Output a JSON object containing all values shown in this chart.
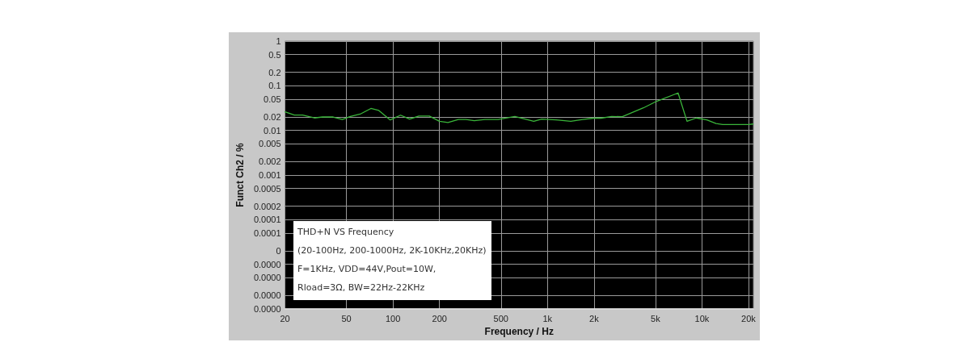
{
  "chart_data": {
    "type": "line",
    "xlabel": "Frequency / Hz",
    "ylabel": "Funct Ch2 / %",
    "annotations": [
      "THD+N VS Frequency",
      "(20-100Hz, 200-1000Hz, 2K-10KHz,20KHz)",
      "F=1KHz, VDD=44V,Pout=10W,",
      "Rload=3Ω, BW=22Hz-22KHz"
    ],
    "x": [
      20,
      23,
      26,
      31,
      35,
      41,
      47,
      53,
      62,
      72,
      81,
      96,
      112,
      128,
      147,
      172,
      200,
      227,
      265,
      297,
      336,
      393,
      479,
      615,
      815,
      917,
      1140,
      1415,
      1690,
      1980,
      2225,
      2600,
      3050,
      4175,
      5090,
      7000,
      8000,
      9180,
      10750,
      12330,
      13600,
      20000,
      21400
    ],
    "series": [
      {
        "color": "#3ab53a",
        "values": [
          0.026,
          0.022,
          0.022,
          0.019,
          0.02,
          0.02,
          0.0176,
          0.0206,
          0.0236,
          0.031,
          0.028,
          0.0172,
          0.022,
          0.0179,
          0.021,
          0.021,
          0.016,
          0.015,
          0.0176,
          0.0176,
          0.0165,
          0.0176,
          0.0176,
          0.0205,
          0.016,
          0.0179,
          0.0172,
          0.016,
          0.0176,
          0.0188,
          0.0188,
          0.0205,
          0.0203,
          0.032,
          0.045,
          0.069,
          0.016,
          0.019,
          0.0172,
          0.0143,
          0.0136,
          0.0136,
          0.0139
        ]
      }
    ],
    "xlim": [
      20,
      21500
    ],
    "ylim": [
      1e-06,
      1
    ],
    "xticks": [
      20,
      50,
      100,
      200,
      500,
      {
        "value": 1000,
        "label": "1k"
      },
      {
        "value": 2000,
        "label": "2k"
      },
      {
        "value": 5000,
        "label": "5k"
      },
      {
        "value": 10000,
        "label": "10k"
      },
      {
        "value": 20000,
        "label": "20k"
      }
    ],
    "yticks": [
      1,
      0.5,
      0.2,
      0.1,
      0.05,
      0.02,
      0.01,
      0.005,
      0.002,
      0.001,
      0.0005,
      0.0002,
      0.0001,
      {
        "value": 5e-05,
        "label": "0.0001"
      },
      {
        "value": 2e-05,
        "label": "0"
      },
      {
        "value": 1e-05,
        "label": "0.0000"
      },
      {
        "value": 5e-06,
        "label": "0.0000"
      },
      {
        "value": 2e-06,
        "label": "0.0000"
      },
      {
        "value": 1e-06,
        "label": "0.0000"
      }
    ],
    "log": "xy",
    "grid": true,
    "marker": "none",
    "line_style": "solid"
  }
}
